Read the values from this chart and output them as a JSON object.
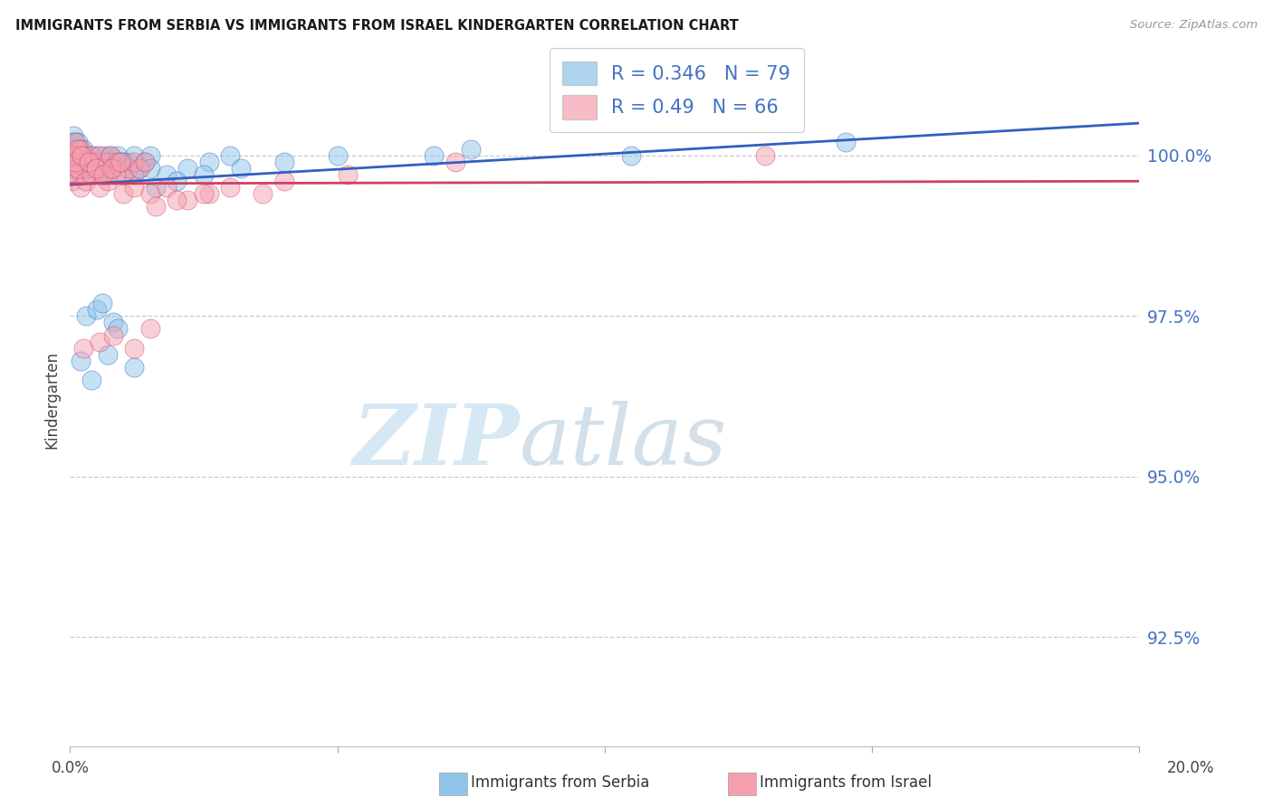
{
  "title": "IMMIGRANTS FROM SERBIA VS IMMIGRANTS FROM ISRAEL KINDERGARTEN CORRELATION CHART",
  "source": "Source: ZipAtlas.com",
  "ylabel": "Kindergarten",
  "yticks": [
    92.5,
    95.0,
    97.5,
    100.0
  ],
  "ytick_labels": [
    "92.5%",
    "95.0%",
    "97.5%",
    "100.0%"
  ],
  "xmin": 0.0,
  "xmax": 20.0,
  "ymin": 90.8,
  "ymax": 101.6,
  "serbia_R": 0.346,
  "serbia_N": 79,
  "israel_R": 0.49,
  "israel_N": 66,
  "serbia_color": "#8ec4e8",
  "israel_color": "#f4a0b0",
  "serbia_line_color": "#3060c0",
  "israel_line_color": "#d04060",
  "legend_label_serbia": "Immigrants from Serbia",
  "legend_label_israel": "Immigrants from Israel",
  "watermark_zip": "ZIP",
  "watermark_atlas": "atlas"
}
